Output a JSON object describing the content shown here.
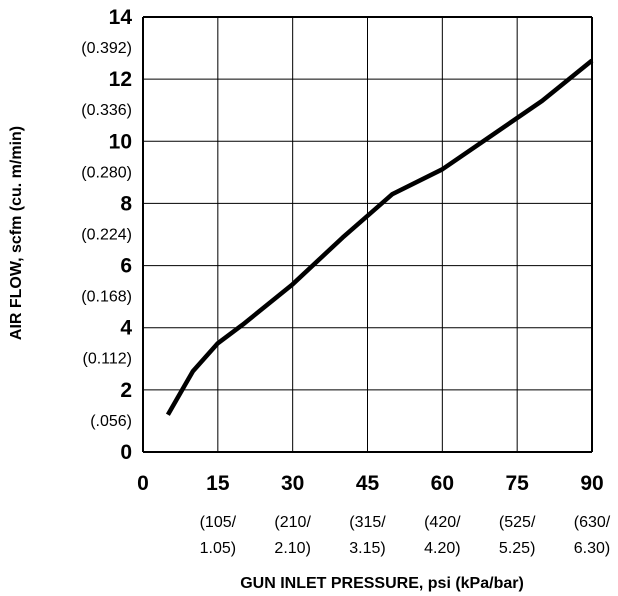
{
  "chart_data": {
    "type": "line",
    "xlabel": "GUN INLET PRESSURE, psi (kPa/bar)",
    "ylabel": "AIR FLOW, scfm (cu. m/min)",
    "xlim": [
      0,
      90
    ],
    "ylim": [
      0,
      14
    ],
    "grid": true,
    "x_ticks": [
      {
        "value": 0,
        "label": "0",
        "sub1": "",
        "sub2": ""
      },
      {
        "value": 15,
        "label": "15",
        "sub1": "(105/",
        "sub2": "1.05)"
      },
      {
        "value": 30,
        "label": "30",
        "sub1": "(210/",
        "sub2": "2.10)"
      },
      {
        "value": 45,
        "label": "45",
        "sub1": "(315/",
        "sub2": "3.15)"
      },
      {
        "value": 60,
        "label": "60",
        "sub1": "(420/",
        "sub2": "4.20)"
      },
      {
        "value": 75,
        "label": "75",
        "sub1": "(525/",
        "sub2": "5.25)"
      },
      {
        "value": 90,
        "label": "90",
        "sub1": "(630/",
        "sub2": "6.30)"
      }
    ],
    "y_ticks": [
      {
        "value": 0,
        "label": "0",
        "sub": ""
      },
      {
        "value": 2,
        "label": "2",
        "sub": "(.056)"
      },
      {
        "value": 4,
        "label": "4",
        "sub": "(0.112)"
      },
      {
        "value": 6,
        "label": "6",
        "sub": "(0.168)"
      },
      {
        "value": 8,
        "label": "8",
        "sub": "(0.224)"
      },
      {
        "value": 10,
        "label": "10",
        "sub": "(0.280)"
      },
      {
        "value": 12,
        "label": "12",
        "sub": "(0.336)"
      },
      {
        "value": 14,
        "label": "14",
        "sub": "(0.392)"
      }
    ],
    "series": [
      {
        "x": [
          5,
          10,
          15,
          20,
          30,
          40,
          50,
          60,
          70,
          80,
          90
        ],
        "y": [
          1.2,
          2.6,
          3.5,
          4.1,
          5.4,
          6.9,
          8.3,
          9.1,
          10.2,
          11.3,
          12.6
        ]
      }
    ]
  },
  "colors": {
    "line": "#000000",
    "grid": "#000000",
    "background": "#ffffff"
  }
}
